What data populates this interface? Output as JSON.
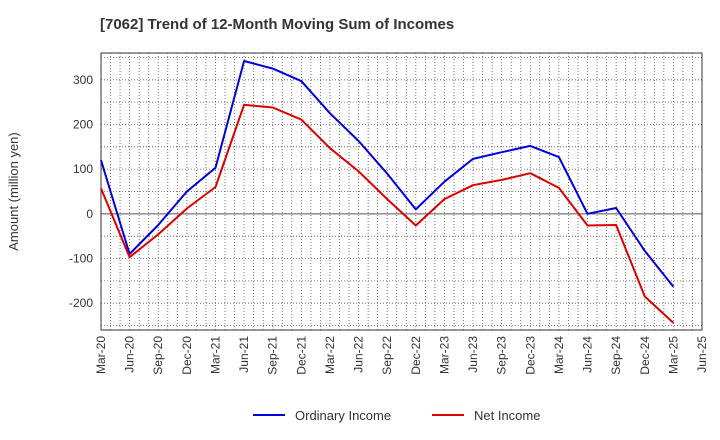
{
  "chart_data": {
    "type": "line",
    "title": "[7062]  Trend of 12-Month Moving Sum of Incomes",
    "xlabel": "",
    "ylabel": "Amount (million yen)",
    "ylim": [
      -260,
      360
    ],
    "yticks": [
      -200,
      -100,
      0,
      100,
      200,
      300
    ],
    "grid": true,
    "legend_position": "bottom",
    "categories": [
      "Mar-20",
      "Jun-20",
      "Sep-20",
      "Dec-20",
      "Mar-21",
      "Jun-21",
      "Sep-21",
      "Dec-21",
      "Mar-22",
      "Jun-22",
      "Sep-22",
      "Dec-22",
      "Mar-23",
      "Jun-23",
      "Sep-23",
      "Dec-23",
      "Mar-24",
      "Jun-24",
      "Sep-24",
      "Dec-24",
      "Mar-25",
      "Jun-25"
    ],
    "series": [
      {
        "name": "Ordinary Income",
        "color": "#0000dd",
        "values": [
          120,
          -90,
          -25,
          50,
          103,
          342,
          325,
          297,
          225,
          163,
          90,
          10,
          72,
          123,
          138,
          152,
          127,
          0,
          13,
          -83,
          -163,
          null
        ]
      },
      {
        "name": "Net Income",
        "color": "#dd0000",
        "values": [
          57,
          -97,
          -46,
          12,
          60,
          244,
          238,
          211,
          147,
          95,
          33,
          -26,
          33,
          64,
          76,
          91,
          58,
          -26,
          -25,
          -185,
          -244,
          null
        ]
      }
    ]
  }
}
